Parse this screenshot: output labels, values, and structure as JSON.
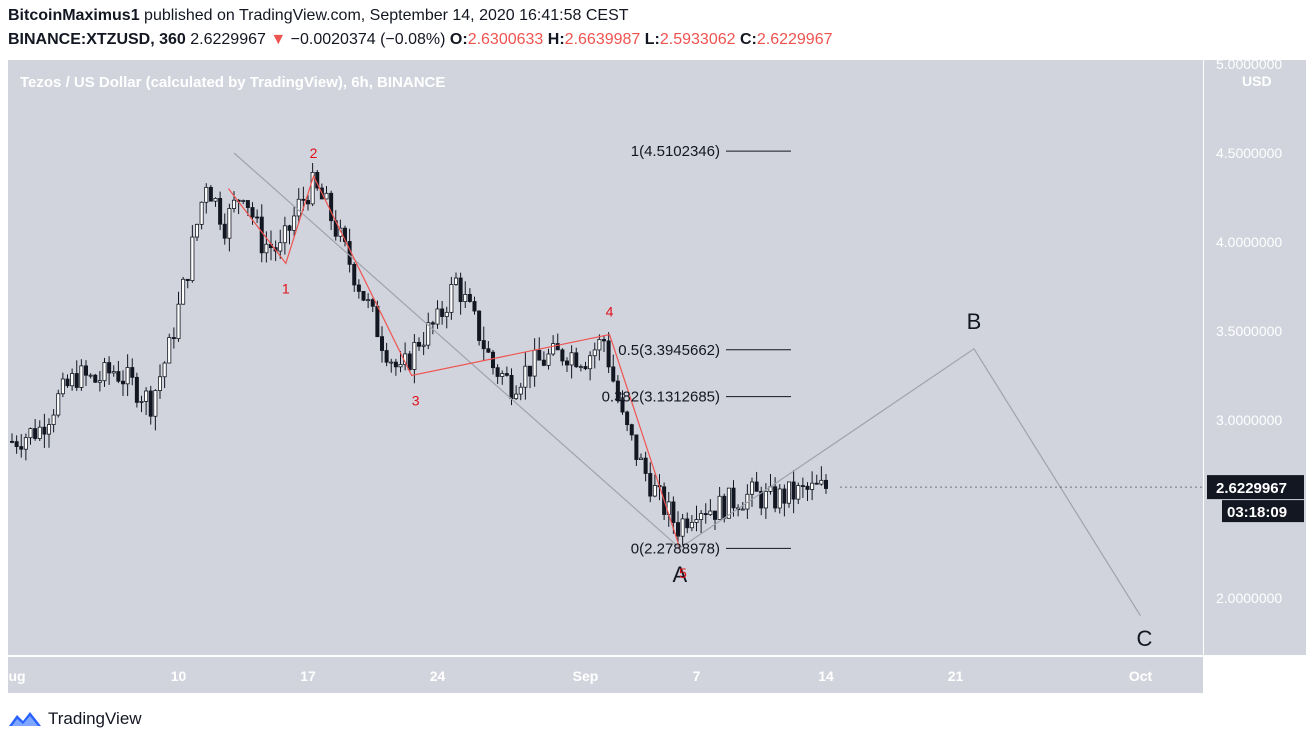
{
  "header": {
    "author": "BitcoinMaximus1",
    "published_text": "published on TradingView.com, September 14, 2020 16:41:58 CEST",
    "symbol": "BINANCE:XTZUSD, 360",
    "last": "2.6229967",
    "change_arrow": "▼",
    "change": "−0.0020374 (−0.08%)",
    "o_label": "O:",
    "o_value": "2.6300633",
    "h_label": "H:",
    "h_value": "2.6639987",
    "l_label": "L:",
    "l_value": "2.5933062",
    "c_label": "C:",
    "c_value": "2.6229967"
  },
  "chart_label": "Tezos / US Dollar (calculated by TradingView), 6h, BINANCE",
  "currency": "USD",
  "price_badge": "2.6229967",
  "countdown_badge": "03:18:09",
  "footer": {
    "brand": "TradingView",
    "logo_icon": "tradingview-logo-icon"
  },
  "colors": {
    "plot_bg": "#d1d4dc",
    "wave_line": "#ef5350",
    "projection_line": "#a0a3ab",
    "badge_bg": "#131722"
  },
  "chart_data": {
    "type": "candlestick",
    "title": "Tezos / US Dollar (calculated by TradingView), 6h, BINANCE",
    "ylim": [
      1.65,
      5.05
    ],
    "y_ticks": [
      {
        "value": 5.0,
        "label": "5.0000000"
      },
      {
        "value": 4.5,
        "label": "4.5000000"
      },
      {
        "value": 4.0,
        "label": "4.0000000"
      },
      {
        "value": 3.5,
        "label": "3.5000000"
      },
      {
        "value": 3.0,
        "label": "3.0000000"
      },
      {
        "value": 2.0,
        "label": "2.0000000"
      }
    ],
    "x_ticks": [
      {
        "day": 0,
        "label": "Aug"
      },
      {
        "day": 9,
        "label": "10"
      },
      {
        "day": 16,
        "label": "17"
      },
      {
        "day": 23,
        "label": "24"
      },
      {
        "day": 31,
        "label": "Sep"
      },
      {
        "day": 37,
        "label": "7"
      },
      {
        "day": 44,
        "label": "14"
      },
      {
        "day": 51,
        "label": "21"
      },
      {
        "day": 61,
        "label": "Oct"
      }
    ],
    "close_path": [
      [
        0,
        2.88
      ],
      [
        1.5,
        2.95
      ],
      [
        2.5,
        3.12
      ],
      [
        3.5,
        3.25
      ],
      [
        4.5,
        3.22
      ],
      [
        5.5,
        3.28
      ],
      [
        6.5,
        3.2
      ],
      [
        7.5,
        3.1
      ],
      [
        8.5,
        3.4
      ],
      [
        9.5,
        3.85
      ],
      [
        10.5,
        4.35
      ],
      [
        11.5,
        4.1
      ],
      [
        12.5,
        4.3
      ],
      [
        13.5,
        4.0
      ],
      [
        14.5,
        3.95
      ],
      [
        15.5,
        4.2
      ],
      [
        16.2,
        4.32
      ],
      [
        17,
        4.2
      ],
      [
        18,
        3.95
      ],
      [
        19,
        3.7
      ],
      [
        20,
        3.45
      ],
      [
        21,
        3.25
      ],
      [
        22,
        3.45
      ],
      [
        23,
        3.55
      ],
      [
        24,
        3.78
      ],
      [
        25,
        3.55
      ],
      [
        26,
        3.3
      ],
      [
        27,
        3.2
      ],
      [
        28,
        3.3
      ],
      [
        29,
        3.35
      ],
      [
        30,
        3.38
      ],
      [
        31,
        3.35
      ],
      [
        32,
        3.45
      ],
      [
        33,
        3.0
      ],
      [
        34,
        2.75
      ],
      [
        35,
        2.55
      ],
      [
        36,
        2.4
      ],
      [
        37,
        2.52
      ],
      [
        38,
        2.5
      ],
      [
        39,
        2.55
      ],
      [
        40,
        2.58
      ],
      [
        41,
        2.55
      ],
      [
        42,
        2.58
      ],
      [
        43,
        2.6
      ],
      [
        44,
        2.62
      ]
    ],
    "wave_points": [
      {
        "label": "",
        "day": 11.7,
        "price": 4.3
      },
      {
        "label": "1",
        "day": 14.8,
        "price": 3.88
      },
      {
        "label": "2",
        "day": 16.3,
        "price": 4.37
      },
      {
        "label": "3",
        "day": 21.6,
        "price": 3.25
      },
      {
        "label": "4",
        "day": 32.3,
        "price": 3.48
      },
      {
        "label": "5",
        "day": 36.1,
        "price": 2.28
      }
    ],
    "abc_path": [
      {
        "label": "",
        "day": 12.0,
        "price": 4.5
      },
      {
        "label": "A",
        "day": 36.1,
        "price": 2.28
      },
      {
        "label": "B",
        "day": 52.0,
        "price": 3.4
      },
      {
        "label": "C",
        "day": 61.0,
        "price": 1.9
      }
    ],
    "fib_levels": [
      {
        "label": "1(4.5102346)",
        "value": 4.5102346
      },
      {
        "label": "0.5(3.3945662)",
        "value": 3.3945662
      },
      {
        "label": "0.382(3.1312685)",
        "value": 3.1312685
      },
      {
        "label": "0(2.2788978)",
        "value": 2.2788978
      }
    ],
    "last_price": 2.6229967
  }
}
